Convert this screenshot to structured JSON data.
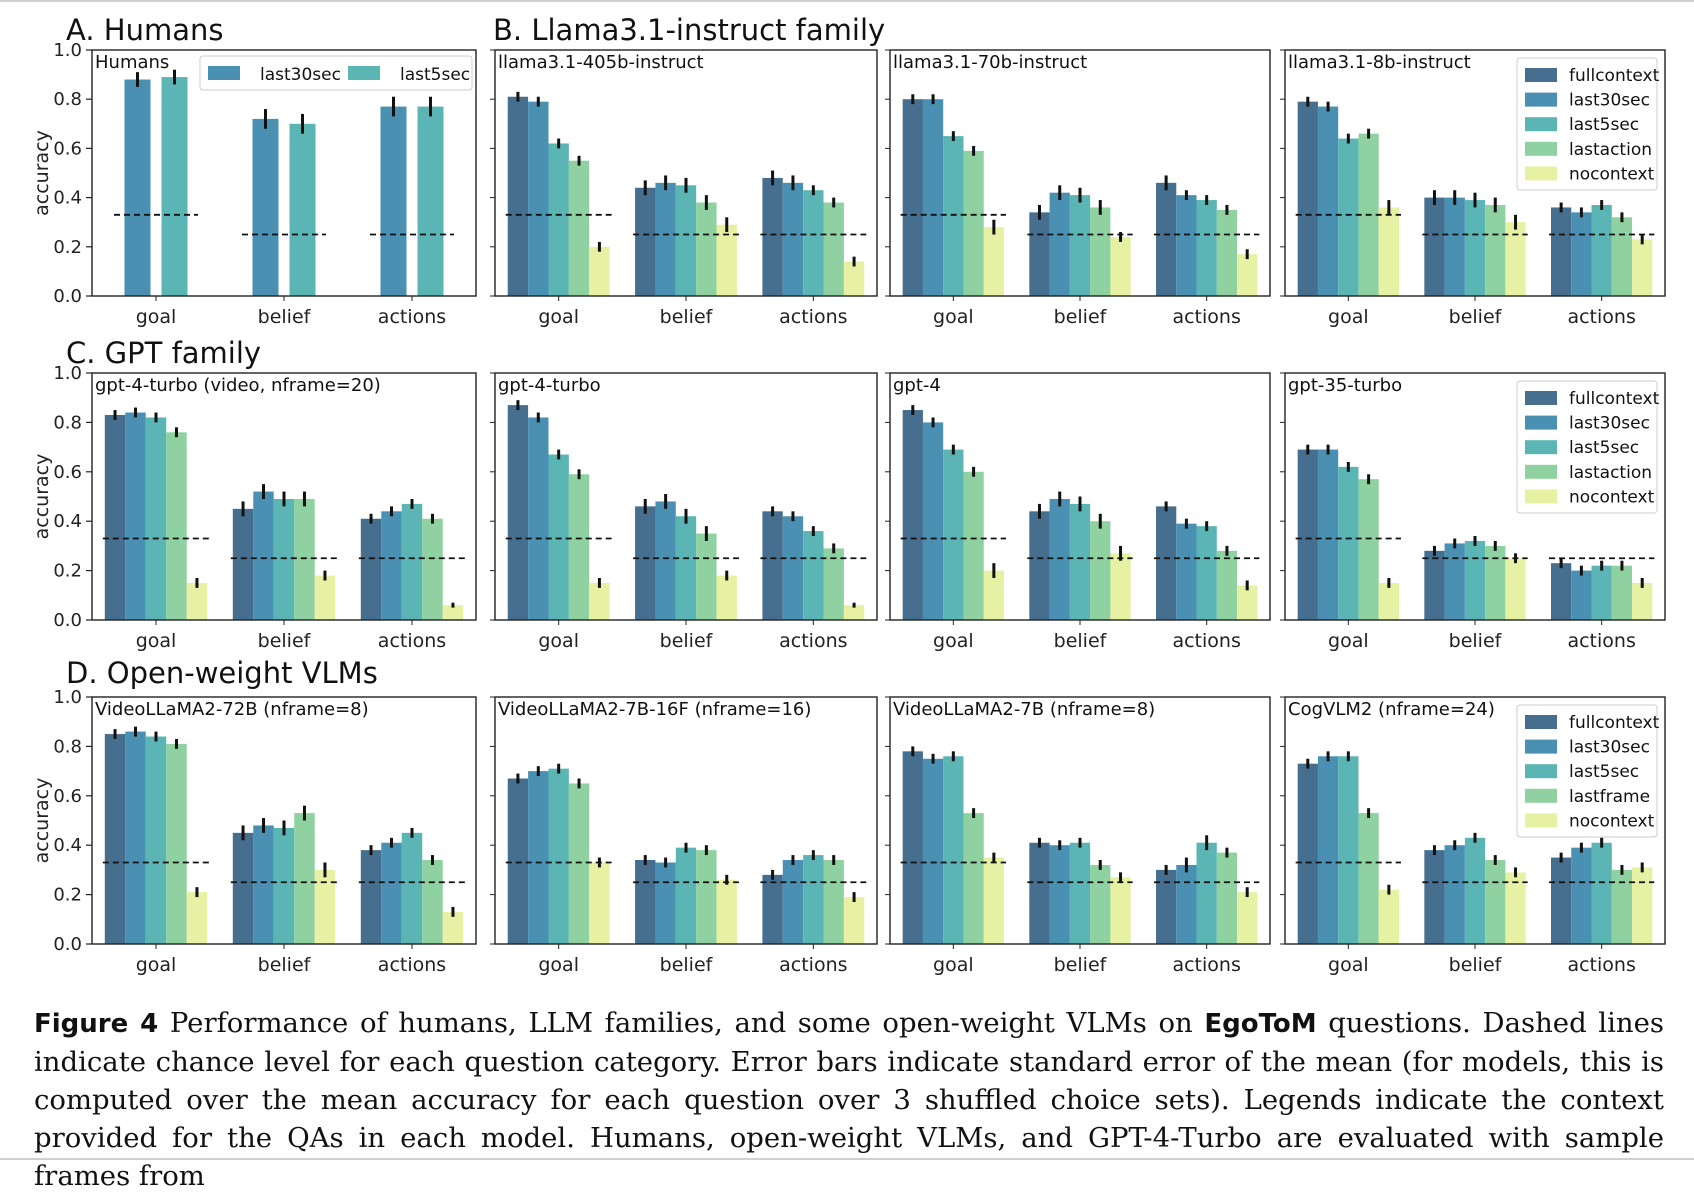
{
  "colors": {
    "fullcontext": "#456e8f",
    "last30sec": "#4a90b2",
    "last5sec": "#5ab5b4",
    "lastaction": "#8fd1a0",
    "lastframe": "#8fd1a0",
    "nocontext": "#e7f1a4"
  },
  "rows": [
    {
      "label": "A. Humans"
    },
    {
      "label": "B. Llama3.1-instruct family"
    },
    {
      "label": "C. GPT family"
    },
    {
      "label": "D. Open-weight VLMs"
    }
  ],
  "y_axis": {
    "label": "accuracy",
    "ticks": [
      "0.0",
      "0.2",
      "0.4",
      "0.6",
      "0.8",
      "1.0"
    ]
  },
  "chart_data": [
    {
      "type": "bar",
      "title": "Humans",
      "ylabel": "accuracy",
      "ylim": [
        0,
        1
      ],
      "categories": [
        "goal",
        "belief",
        "actions"
      ],
      "chance": [
        0.33,
        0.25,
        0.25
      ],
      "legend": "top-right",
      "series": [
        {
          "name": "last30sec",
          "values": [
            0.88,
            0.72,
            0.77
          ],
          "err": [
            0.03,
            0.04,
            0.04
          ]
        },
        {
          "name": "last5sec",
          "values": [
            0.89,
            0.7,
            0.77
          ],
          "err": [
            0.03,
            0.04,
            0.04
          ]
        }
      ]
    },
    {
      "type": "bar",
      "title": "llama3.1-405b-instruct",
      "ylim": [
        0,
        1
      ],
      "categories": [
        "goal",
        "belief",
        "actions"
      ],
      "chance": [
        0.33,
        0.25,
        0.25
      ],
      "series": [
        {
          "name": "fullcontext",
          "values": [
            0.81,
            0.44,
            0.48
          ],
          "err": [
            0.02,
            0.03,
            0.03
          ]
        },
        {
          "name": "last30sec",
          "values": [
            0.79,
            0.46,
            0.46
          ],
          "err": [
            0.02,
            0.03,
            0.03
          ]
        },
        {
          "name": "last5sec",
          "values": [
            0.62,
            0.45,
            0.43
          ],
          "err": [
            0.02,
            0.03,
            0.02
          ]
        },
        {
          "name": "lastaction",
          "values": [
            0.55,
            0.38,
            0.38
          ],
          "err": [
            0.02,
            0.03,
            0.02
          ]
        },
        {
          "name": "nocontext",
          "values": [
            0.2,
            0.29,
            0.14
          ],
          "err": [
            0.02,
            0.03,
            0.02
          ]
        }
      ]
    },
    {
      "type": "bar",
      "title": "llama3.1-70b-instruct",
      "ylim": [
        0,
        1
      ],
      "categories": [
        "goal",
        "belief",
        "actions"
      ],
      "chance": [
        0.33,
        0.25,
        0.25
      ],
      "series": [
        {
          "name": "fullcontext",
          "values": [
            0.8,
            0.34,
            0.46
          ],
          "err": [
            0.02,
            0.03,
            0.03
          ]
        },
        {
          "name": "last30sec",
          "values": [
            0.8,
            0.42,
            0.41
          ],
          "err": [
            0.02,
            0.03,
            0.02
          ]
        },
        {
          "name": "last5sec",
          "values": [
            0.65,
            0.41,
            0.39
          ],
          "err": [
            0.02,
            0.03,
            0.02
          ]
        },
        {
          "name": "lastaction",
          "values": [
            0.59,
            0.36,
            0.35
          ],
          "err": [
            0.02,
            0.03,
            0.02
          ]
        },
        {
          "name": "nocontext",
          "values": [
            0.28,
            0.24,
            0.17
          ],
          "err": [
            0.03,
            0.02,
            0.02
          ]
        }
      ]
    },
    {
      "type": "bar",
      "title": "llama3.1-8b-instruct",
      "ylim": [
        0,
        1
      ],
      "categories": [
        "goal",
        "belief",
        "actions"
      ],
      "chance": [
        0.33,
        0.25,
        0.25
      ],
      "legend": "top-right",
      "series": [
        {
          "name": "fullcontext",
          "values": [
            0.79,
            0.4,
            0.36
          ],
          "err": [
            0.02,
            0.03,
            0.02
          ]
        },
        {
          "name": "last30sec",
          "values": [
            0.77,
            0.4,
            0.34
          ],
          "err": [
            0.02,
            0.03,
            0.02
          ]
        },
        {
          "name": "last5sec",
          "values": [
            0.64,
            0.39,
            0.37
          ],
          "err": [
            0.02,
            0.03,
            0.02
          ]
        },
        {
          "name": "lastaction",
          "values": [
            0.66,
            0.37,
            0.32
          ],
          "err": [
            0.02,
            0.03,
            0.02
          ]
        },
        {
          "name": "nocontext",
          "values": [
            0.36,
            0.3,
            0.23
          ],
          "err": [
            0.03,
            0.03,
            0.02
          ]
        }
      ]
    },
    {
      "type": "bar",
      "title": "gpt-4-turbo (video, nframe=20)",
      "ylabel": "accuracy",
      "ylim": [
        0,
        1
      ],
      "categories": [
        "goal",
        "belief",
        "actions"
      ],
      "chance": [
        0.33,
        0.25,
        0.25
      ],
      "series": [
        {
          "name": "fullcontext",
          "values": [
            0.83,
            0.45,
            0.41
          ],
          "err": [
            0.02,
            0.03,
            0.02
          ]
        },
        {
          "name": "last30sec",
          "values": [
            0.84,
            0.52,
            0.44
          ],
          "err": [
            0.02,
            0.03,
            0.02
          ]
        },
        {
          "name": "last5sec",
          "values": [
            0.82,
            0.49,
            0.47
          ],
          "err": [
            0.02,
            0.03,
            0.02
          ]
        },
        {
          "name": "lastaction",
          "values": [
            0.76,
            0.49,
            0.41
          ],
          "err": [
            0.02,
            0.03,
            0.02
          ]
        },
        {
          "name": "nocontext",
          "values": [
            0.15,
            0.18,
            0.06
          ],
          "err": [
            0.02,
            0.02,
            0.01
          ]
        }
      ]
    },
    {
      "type": "bar",
      "title": "gpt-4-turbo",
      "ylim": [
        0,
        1
      ],
      "categories": [
        "goal",
        "belief",
        "actions"
      ],
      "chance": [
        0.33,
        0.25,
        0.25
      ],
      "series": [
        {
          "name": "fullcontext",
          "values": [
            0.87,
            0.46,
            0.44
          ],
          "err": [
            0.02,
            0.03,
            0.02
          ]
        },
        {
          "name": "last30sec",
          "values": [
            0.82,
            0.48,
            0.42
          ],
          "err": [
            0.02,
            0.03,
            0.02
          ]
        },
        {
          "name": "last5sec",
          "values": [
            0.67,
            0.42,
            0.36
          ],
          "err": [
            0.02,
            0.03,
            0.02
          ]
        },
        {
          "name": "lastaction",
          "values": [
            0.59,
            0.35,
            0.29
          ],
          "err": [
            0.02,
            0.03,
            0.02
          ]
        },
        {
          "name": "nocontext",
          "values": [
            0.15,
            0.18,
            0.06
          ],
          "err": [
            0.02,
            0.02,
            0.01
          ]
        }
      ]
    },
    {
      "type": "bar",
      "title": "gpt-4",
      "ylim": [
        0,
        1
      ],
      "categories": [
        "goal",
        "belief",
        "actions"
      ],
      "chance": [
        0.33,
        0.25,
        0.25
      ],
      "series": [
        {
          "name": "fullcontext",
          "values": [
            0.85,
            0.44,
            0.46
          ],
          "err": [
            0.02,
            0.03,
            0.02
          ]
        },
        {
          "name": "last30sec",
          "values": [
            0.8,
            0.49,
            0.39
          ],
          "err": [
            0.02,
            0.03,
            0.02
          ]
        },
        {
          "name": "last5sec",
          "values": [
            0.69,
            0.47,
            0.38
          ],
          "err": [
            0.02,
            0.03,
            0.02
          ]
        },
        {
          "name": "lastaction",
          "values": [
            0.6,
            0.4,
            0.28
          ],
          "err": [
            0.02,
            0.03,
            0.02
          ]
        },
        {
          "name": "nocontext",
          "values": [
            0.2,
            0.27,
            0.14
          ],
          "err": [
            0.03,
            0.03,
            0.02
          ]
        }
      ]
    },
    {
      "type": "bar",
      "title": "gpt-35-turbo",
      "ylim": [
        0,
        1
      ],
      "categories": [
        "goal",
        "belief",
        "actions"
      ],
      "chance": [
        0.33,
        0.25,
        0.25
      ],
      "legend": "top-right",
      "series": [
        {
          "name": "fullcontext",
          "values": [
            0.69,
            0.28,
            0.23
          ],
          "err": [
            0.02,
            0.02,
            0.02
          ]
        },
        {
          "name": "last30sec",
          "values": [
            0.69,
            0.31,
            0.2
          ],
          "err": [
            0.02,
            0.02,
            0.02
          ]
        },
        {
          "name": "last5sec",
          "values": [
            0.62,
            0.32,
            0.22
          ],
          "err": [
            0.02,
            0.02,
            0.02
          ]
        },
        {
          "name": "lastaction",
          "values": [
            0.57,
            0.3,
            0.22
          ],
          "err": [
            0.02,
            0.02,
            0.02
          ]
        },
        {
          "name": "nocontext",
          "values": [
            0.15,
            0.25,
            0.15
          ],
          "err": [
            0.02,
            0.02,
            0.02
          ]
        }
      ]
    },
    {
      "type": "bar",
      "title": "VideoLLaMA2-72B (nframe=8)",
      "ylabel": "accuracy",
      "ylim": [
        0,
        1
      ],
      "categories": [
        "goal",
        "belief",
        "actions"
      ],
      "chance": [
        0.33,
        0.25,
        0.25
      ],
      "series": [
        {
          "name": "fullcontext",
          "values": [
            0.85,
            0.45,
            0.38
          ],
          "err": [
            0.02,
            0.03,
            0.02
          ]
        },
        {
          "name": "last30sec",
          "values": [
            0.86,
            0.48,
            0.41
          ],
          "err": [
            0.02,
            0.03,
            0.02
          ]
        },
        {
          "name": "last5sec",
          "values": [
            0.84,
            0.47,
            0.45
          ],
          "err": [
            0.02,
            0.03,
            0.02
          ]
        },
        {
          "name": "lastframe",
          "values": [
            0.81,
            0.53,
            0.34
          ],
          "err": [
            0.02,
            0.03,
            0.02
          ]
        },
        {
          "name": "nocontext",
          "values": [
            0.21,
            0.3,
            0.13
          ],
          "err": [
            0.02,
            0.03,
            0.02
          ]
        }
      ]
    },
    {
      "type": "bar",
      "title": "VideoLLaMA2-7B-16F (nframe=16)",
      "ylim": [
        0,
        1
      ],
      "categories": [
        "goal",
        "belief",
        "actions"
      ],
      "chance": [
        0.33,
        0.25,
        0.25
      ],
      "series": [
        {
          "name": "fullcontext",
          "values": [
            0.67,
            0.34,
            0.28
          ],
          "err": [
            0.02,
            0.02,
            0.02
          ]
        },
        {
          "name": "last30sec",
          "values": [
            0.7,
            0.33,
            0.34
          ],
          "err": [
            0.02,
            0.02,
            0.02
          ]
        },
        {
          "name": "last5sec",
          "values": [
            0.71,
            0.39,
            0.36
          ],
          "err": [
            0.02,
            0.02,
            0.02
          ]
        },
        {
          "name": "lastframe",
          "values": [
            0.65,
            0.38,
            0.34
          ],
          "err": [
            0.02,
            0.02,
            0.02
          ]
        },
        {
          "name": "nocontext",
          "values": [
            0.33,
            0.26,
            0.19
          ],
          "err": [
            0.02,
            0.02,
            0.02
          ]
        }
      ]
    },
    {
      "type": "bar",
      "title": "VideoLLaMA2-7B (nframe=8)",
      "ylim": [
        0,
        1
      ],
      "categories": [
        "goal",
        "belief",
        "actions"
      ],
      "chance": [
        0.33,
        0.25,
        0.25
      ],
      "series": [
        {
          "name": "fullcontext",
          "values": [
            0.78,
            0.41,
            0.3
          ],
          "err": [
            0.02,
            0.02,
            0.02
          ]
        },
        {
          "name": "last30sec",
          "values": [
            0.75,
            0.4,
            0.32
          ],
          "err": [
            0.02,
            0.02,
            0.03
          ]
        },
        {
          "name": "last5sec",
          "values": [
            0.76,
            0.41,
            0.41
          ],
          "err": [
            0.02,
            0.02,
            0.03
          ]
        },
        {
          "name": "lastframe",
          "values": [
            0.53,
            0.32,
            0.37
          ],
          "err": [
            0.02,
            0.02,
            0.02
          ]
        },
        {
          "name": "nocontext",
          "values": [
            0.35,
            0.27,
            0.21
          ],
          "err": [
            0.02,
            0.02,
            0.02
          ]
        }
      ]
    },
    {
      "type": "bar",
      "title": "CogVLM2 (nframe=24)",
      "ylim": [
        0,
        1
      ],
      "categories": [
        "goal",
        "belief",
        "actions"
      ],
      "chance": [
        0.33,
        0.25,
        0.25
      ],
      "legend": "top-right",
      "series": [
        {
          "name": "fullcontext",
          "values": [
            0.73,
            0.38,
            0.35
          ],
          "err": [
            0.02,
            0.02,
            0.02
          ]
        },
        {
          "name": "last30sec",
          "values": [
            0.76,
            0.4,
            0.39
          ],
          "err": [
            0.02,
            0.02,
            0.02
          ]
        },
        {
          "name": "last5sec",
          "values": [
            0.76,
            0.43,
            0.41
          ],
          "err": [
            0.02,
            0.02,
            0.02
          ]
        },
        {
          "name": "lastframe",
          "values": [
            0.53,
            0.34,
            0.3
          ],
          "err": [
            0.02,
            0.02,
            0.02
          ]
        },
        {
          "name": "nocontext",
          "values": [
            0.22,
            0.29,
            0.31
          ],
          "err": [
            0.02,
            0.02,
            0.02
          ]
        }
      ]
    }
  ],
  "caption": {
    "figure_label": "Figure 4",
    "text_before": " Performance of humans, LLM families, and some open-weight VLMs on ",
    "bold_term": "EgoToM",
    "text_after": " questions. Dashed lines indicate chance level for each question category. Error bars indicate standard error of the mean (for models, this is computed over the mean accuracy for each question over 3 shuffled choice sets). Legends indicate the context provided for the QAs in each model. Humans, open-weight VLMs, and GPT-4-Turbo are evaluated with sample frames from"
  }
}
